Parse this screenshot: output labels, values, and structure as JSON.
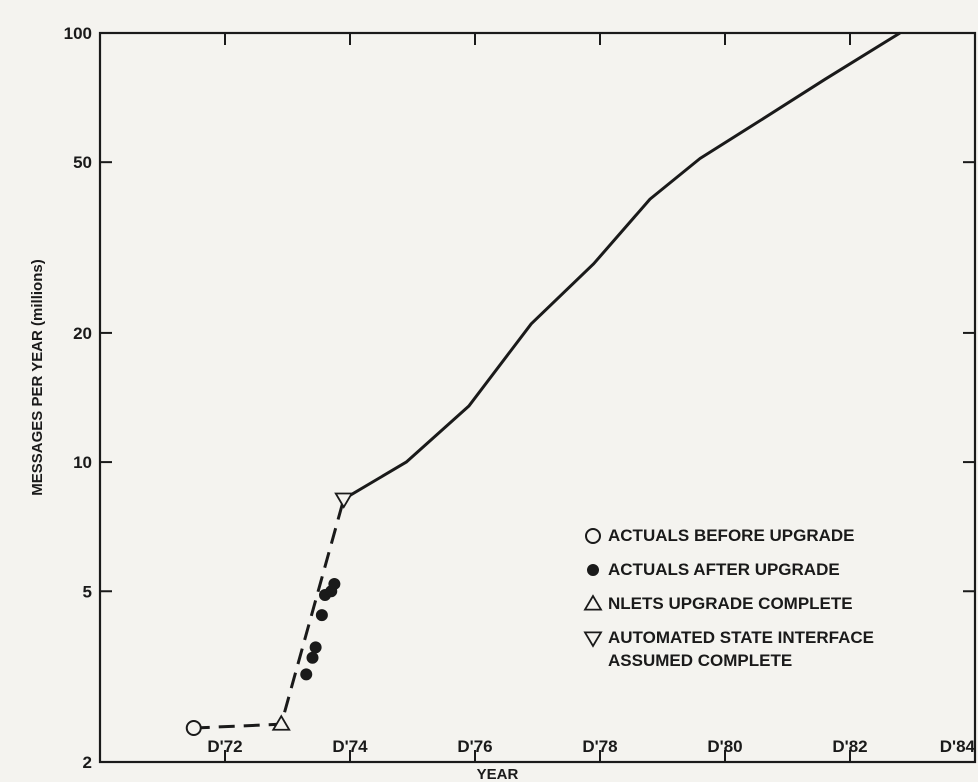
{
  "chart_data": {
    "type": "line",
    "title": "",
    "xlabel": "YEAR",
    "ylabel": "MESSAGES PER YEAR (millions)",
    "x_scale": "linear",
    "y_scale": "log",
    "xlim": [
      1970,
      1984
    ],
    "ylim": [
      2,
      100
    ],
    "x_tick_values": [
      1972,
      1974,
      1976,
      1978,
      1980,
      1982,
      1984
    ],
    "x_tick_labels": [
      "D'72",
      "D'74",
      "D'76",
      "D'78",
      "D'80",
      "D'82",
      "D'84"
    ],
    "y_tick_values": [
      2,
      5,
      10,
      20,
      50,
      100
    ],
    "y_tick_labels": [
      "2",
      "5",
      "10",
      "20",
      "50",
      "100"
    ],
    "grid": false,
    "legend_position": "bottom-right",
    "series": [
      {
        "style": "dashed",
        "color": "#1a1a1a",
        "x": [
          1971.5,
          1972.9,
          1973.9
        ],
        "y": [
          2.4,
          2.45,
          8.2
        ]
      },
      {
        "style": "solid",
        "color": "#1a1a1a",
        "x": [
          1973.9,
          1974.9,
          1975.9,
          1976.9,
          1977.9,
          1978.8,
          1979.6,
          1980.6,
          1981.6,
          1982.8
        ],
        "y": [
          8.2,
          10.0,
          13.5,
          21.0,
          29.0,
          41.0,
          51.0,
          63.0,
          78.0,
          100.0
        ]
      },
      {
        "name": "ACTUALS BEFORE UPGRADE",
        "marker": "open-circle",
        "x": [
          1971.5
        ],
        "y": [
          2.4
        ]
      },
      {
        "name": "ACTUALS AFTER UPGRADE",
        "marker": "filled-circle",
        "x": [
          1973.3,
          1973.4,
          1973.45,
          1973.55,
          1973.6,
          1973.7,
          1973.75
        ],
        "y": [
          3.2,
          3.5,
          3.7,
          4.4,
          4.9,
          5.0,
          5.2
        ]
      },
      {
        "name": "NLETS UPGRADE COMPLETE",
        "marker": "triangle-up",
        "x": [
          1972.9
        ],
        "y": [
          2.45
        ]
      },
      {
        "name": "AUTOMATED STATE INTERFACE ASSUMED COMPLETE",
        "marker": "triangle-down",
        "x": [
          1973.9
        ],
        "y": [
          8.2
        ]
      }
    ],
    "legend": {
      "entries": [
        {
          "marker": "open-circle",
          "lines": [
            "ACTUALS BEFORE UPGRADE"
          ]
        },
        {
          "marker": "filled-circle",
          "lines": [
            "ACTUALS AFTER UPGRADE"
          ]
        },
        {
          "marker": "triangle-up",
          "lines": [
            "NLETS UPGRADE COMPLETE"
          ]
        },
        {
          "marker": "triangle-down",
          "lines": [
            "AUTOMATED STATE INTERFACE",
            "ASSUMED COMPLETE"
          ]
        }
      ]
    }
  }
}
